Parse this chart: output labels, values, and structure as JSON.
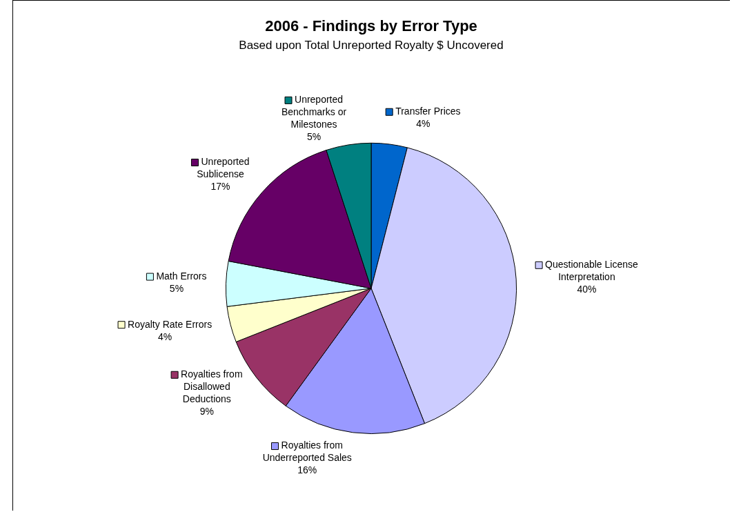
{
  "chart_data": {
    "type": "pie",
    "title": "2006 - Findings by Error Type",
    "subtitle": "Based upon Total Unreported Royalty $ Uncovered",
    "categories": [
      "Transfer Prices",
      "Questionable License Interpretation",
      "Royalties from Underreported Sales",
      "Royalties from Disallowed Deductions",
      "Royalty Rate Errors",
      "Math Errors",
      "Unreported Sublicense",
      "Unreported Benchmarks or Milestones"
    ],
    "values": [
      4,
      40,
      16,
      9,
      4,
      5,
      17,
      5
    ],
    "value_labels": [
      "4%",
      "40%",
      "16%",
      "9%",
      "4%",
      "5%",
      "17%",
      "5%"
    ],
    "colors": [
      "#0066cc",
      "#ccccff",
      "#9999ff",
      "#993366",
      "#ffffcc",
      "#ccffff",
      "#660066",
      "#008080"
    ],
    "legend": "right"
  }
}
